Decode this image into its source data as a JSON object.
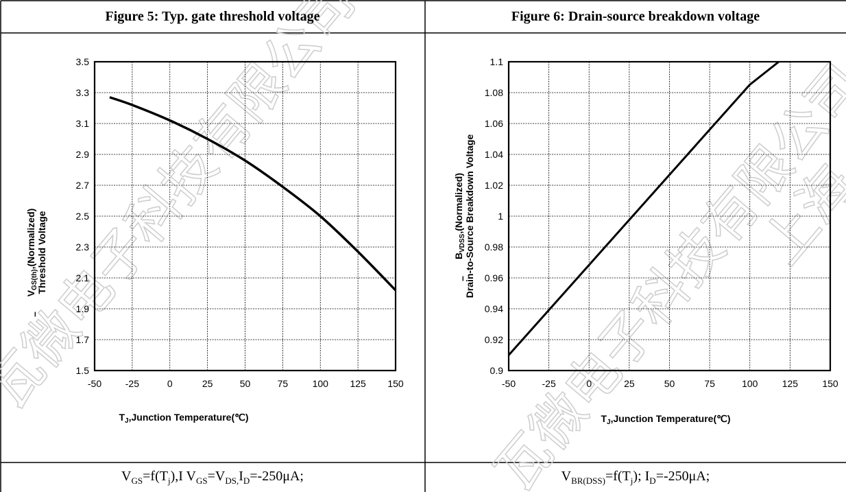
{
  "watermark": "瓦微电子科技有限公司",
  "watermark2": "瓦微电子科技有限公司",
  "watermark3": "上海",
  "figures": {
    "left": {
      "title": "Figure 5: Typ. gate threshold voltage",
      "ylabel_line1_prefix": "V",
      "ylabel_line1_sub": "GS(th)",
      "ylabel_line1_suffix": ",(Normalized)",
      "ylabel_line2": "Threshold Voltage",
      "ylabel_dash": "–",
      "xlabel_prefix": "T",
      "xlabel_sub": "J",
      "xlabel_suffix": ",Junction Temperature(℃)",
      "caption": "V_GS=f(T_j),I V_GS=V_DS,I_D=-250μA;"
    },
    "right": {
      "title": "Figure 6: Drain-source breakdown voltage",
      "ylabel_line1_prefix": "B",
      "ylabel_line1_sub": "VDSS",
      "ylabel_line1_suffix": ",(Normalized)",
      "ylabel_line2": "Drain-to-Source Breakdown Voltage",
      "ylabel_dash": "–",
      "xlabel_prefix": "T",
      "xlabel_sub": "J",
      "xlabel_suffix": ",Junction Temperature(℃)",
      "caption": "V_BR(DSS)=f(T_j); I_D=-250μA;"
    }
  },
  "chart_data": [
    {
      "type": "line",
      "title": "Figure 5: Typ. gate threshold voltage",
      "xlabel": "TJ,Junction Temperature(℃)",
      "ylabel": "VGS(th),(Normalized) Threshold Voltage",
      "xlim": [
        -50,
        150
      ],
      "ylim": [
        1.5,
        3.5
      ],
      "xticks": [
        -50,
        -25,
        0,
        25,
        50,
        75,
        100,
        125,
        150
      ],
      "yticks": [
        "1.5",
        "1.7",
        "1.9",
        "2.1",
        "2.3",
        "2.5",
        "2.7",
        "2.9",
        "3.1",
        "3.3",
        "3.5"
      ],
      "grid": true,
      "series": [
        {
          "x": [
            -40,
            -25,
            0,
            25,
            50,
            75,
            100,
            125,
            150
          ],
          "y": [
            3.27,
            3.22,
            3.12,
            3.0,
            2.86,
            2.69,
            2.5,
            2.27,
            2.02
          ]
        }
      ]
    },
    {
      "type": "line",
      "title": "Figure 6: Drain-source breakdown voltage",
      "xlabel": "TJ,Junction Temperature(℃)",
      "ylabel": "BVDSS,(Normalized) Drain-to-Source Breakdown Voltage",
      "xlim": [
        -50,
        150
      ],
      "ylim": [
        0.9,
        1.1
      ],
      "xticks": [
        -50,
        -25,
        0,
        25,
        50,
        75,
        100,
        125,
        150
      ],
      "yticks": [
        "0.9",
        "0.92",
        "0.94",
        "0.96",
        "0.98",
        "1",
        "1.02",
        "1.04",
        "1.06",
        "1.08",
        "1.1"
      ],
      "grid": true,
      "series": [
        {
          "x": [
            -50,
            0,
            50,
            100,
            118
          ],
          "y": [
            0.91,
            0.9684,
            1.0268,
            1.0852,
            1.1
          ]
        }
      ]
    }
  ]
}
